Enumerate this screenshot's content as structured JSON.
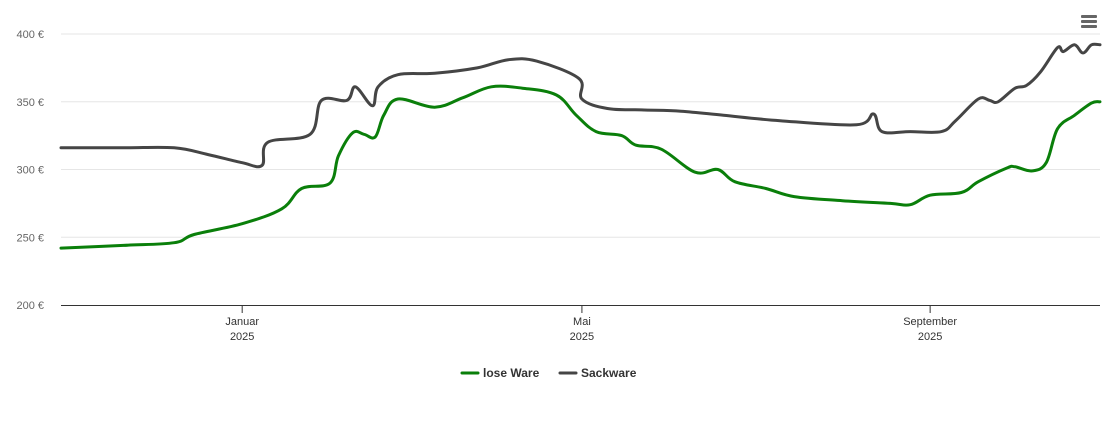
{
  "chart_data": {
    "type": "line",
    "title": "",
    "xlabel": "",
    "ylabel": "",
    "x_ticks": [
      {
        "month": "Januar",
        "year": "2025",
        "date": "2025-01-01"
      },
      {
        "month": "Mai",
        "year": "2025",
        "date": "2025-05-01"
      },
      {
        "month": "September",
        "year": "2025",
        "date": "2025-09-01"
      }
    ],
    "y_ticks": [
      "200 €",
      "250 €",
      "300 €",
      "350 €",
      "400 €"
    ],
    "ylim": [
      200,
      400
    ],
    "xlim": [
      "2024-10-29",
      "2025-10-31"
    ],
    "grid": true,
    "legend_position": "bottom-center",
    "series": [
      {
        "name": "lose Ware",
        "color": "#0a7f0a",
        "points": [
          [
            "2024-10-29",
            242
          ],
          [
            "2024-11-20",
            244
          ],
          [
            "2024-12-08",
            246
          ],
          [
            "2024-12-15",
            252
          ],
          [
            "2025-01-01",
            260
          ],
          [
            "2025-01-15",
            271
          ],
          [
            "2025-01-22",
            286
          ],
          [
            "2025-02-01",
            290
          ],
          [
            "2025-02-04",
            310
          ],
          [
            "2025-02-09",
            327
          ],
          [
            "2025-02-13",
            326
          ],
          [
            "2025-02-17",
            324
          ],
          [
            "2025-02-20",
            340
          ],
          [
            "2025-02-25",
            352
          ],
          [
            "2025-03-10",
            346
          ],
          [
            "2025-03-20",
            353
          ],
          [
            "2025-03-30",
            361
          ],
          [
            "2025-04-10",
            360
          ],
          [
            "2025-04-22",
            355
          ],
          [
            "2025-04-29",
            340
          ],
          [
            "2025-05-06",
            328
          ],
          [
            "2025-05-15",
            325
          ],
          [
            "2025-05-20",
            318
          ],
          [
            "2025-05-29",
            315
          ],
          [
            "2025-06-10",
            298
          ],
          [
            "2025-06-18",
            300
          ],
          [
            "2025-06-24",
            291
          ],
          [
            "2025-07-05",
            286
          ],
          [
            "2025-07-15",
            280
          ],
          [
            "2025-08-01",
            277
          ],
          [
            "2025-08-18",
            275
          ],
          [
            "2025-08-25",
            274
          ],
          [
            "2025-09-01",
            281
          ],
          [
            "2025-09-12",
            283
          ],
          [
            "2025-09-18",
            291
          ],
          [
            "2025-09-28",
            301
          ],
          [
            "2025-10-01",
            302
          ],
          [
            "2025-10-07",
            299
          ],
          [
            "2025-10-12",
            305
          ],
          [
            "2025-10-16",
            330
          ],
          [
            "2025-10-22",
            340
          ],
          [
            "2025-10-28",
            349
          ],
          [
            "2025-10-31",
            350
          ]
        ]
      },
      {
        "name": "Sackware",
        "color": "#454545",
        "points": [
          [
            "2024-10-29",
            316
          ],
          [
            "2024-11-20",
            316
          ],
          [
            "2024-12-08",
            316
          ],
          [
            "2024-12-20",
            311
          ],
          [
            "2025-01-01",
            305
          ],
          [
            "2025-01-08",
            303
          ],
          [
            "2025-01-10",
            320
          ],
          [
            "2025-01-25",
            326
          ],
          [
            "2025-01-29",
            351
          ],
          [
            "2025-02-07",
            351
          ],
          [
            "2025-02-10",
            361
          ],
          [
            "2025-02-16",
            347
          ],
          [
            "2025-02-18",
            361
          ],
          [
            "2025-02-25",
            370
          ],
          [
            "2025-03-10",
            371
          ],
          [
            "2025-03-25",
            375
          ],
          [
            "2025-04-05",
            381
          ],
          [
            "2025-04-15",
            380
          ],
          [
            "2025-04-30",
            367
          ],
          [
            "2025-05-01",
            352
          ],
          [
            "2025-05-10",
            345
          ],
          [
            "2025-05-22",
            344
          ],
          [
            "2025-06-05",
            343
          ],
          [
            "2025-06-20",
            340
          ],
          [
            "2025-07-10",
            336
          ],
          [
            "2025-08-06",
            333
          ],
          [
            "2025-08-12",
            341
          ],
          [
            "2025-08-15",
            328
          ],
          [
            "2025-08-25",
            328
          ],
          [
            "2025-09-05",
            328
          ],
          [
            "2025-09-10",
            336
          ],
          [
            "2025-09-18",
            352
          ],
          [
            "2025-09-22",
            351
          ],
          [
            "2025-09-25",
            350
          ],
          [
            "2025-10-01",
            360
          ],
          [
            "2025-10-05",
            362
          ],
          [
            "2025-10-10",
            372
          ],
          [
            "2025-10-16",
            390
          ],
          [
            "2025-10-18",
            387
          ],
          [
            "2025-10-22",
            392
          ],
          [
            "2025-10-25",
            386
          ],
          [
            "2025-10-28",
            392
          ],
          [
            "2025-10-31",
            392
          ]
        ]
      }
    ]
  },
  "menu": {
    "icon": "hamburger-menu-icon"
  }
}
